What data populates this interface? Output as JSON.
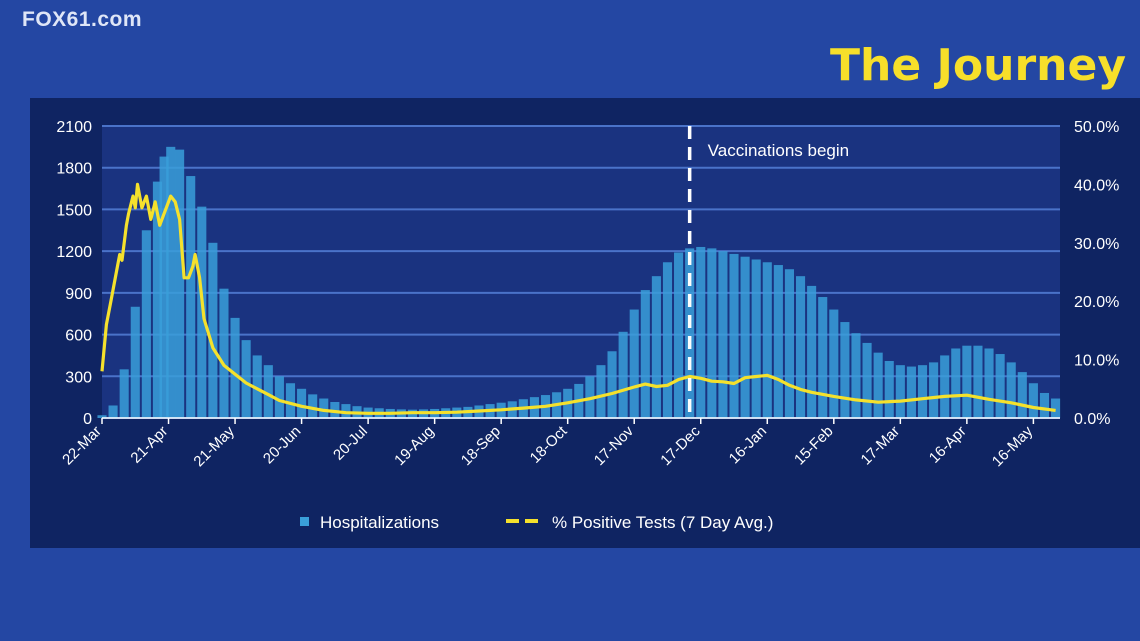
{
  "header": {
    "watermark": "FOX61.com",
    "title": "The Journey"
  },
  "colors": {
    "background": "#2447a3",
    "panel": "#0f2462",
    "plot_area": "#1a3380",
    "bars": "#3a9fd9",
    "line": "#f5e12c",
    "title": "#f7df2a"
  },
  "chart_data": {
    "type": "bar",
    "title": "",
    "x_tick_labels": [
      "22-Mar",
      "21-Apr",
      "21-May",
      "20-Jun",
      "20-Jul",
      "19-Aug",
      "18-Sep",
      "18-Oct",
      "17-Nov",
      "17-Dec",
      "16-Jan",
      "15-Feb",
      "17-Mar",
      "16-Apr",
      "16-May"
    ],
    "x_ticks_days": [
      0,
      30,
      60,
      90,
      120,
      150,
      180,
      210,
      240,
      270,
      300,
      330,
      360,
      390,
      420
    ],
    "x_range_days": [
      0,
      432
    ],
    "y_left": {
      "ticks": [
        "0",
        "300",
        "600",
        "900",
        "1200",
        "1500",
        "1800",
        "2100"
      ],
      "range": [
        0,
        2100
      ]
    },
    "y_right": {
      "ticks": [
        "0.0%",
        "10.0%",
        "20.0%",
        "30.0%",
        "40.0%",
        "50.0%"
      ],
      "range": [
        0,
        50
      ]
    },
    "grid": "horizontal",
    "legend_position": "bottom",
    "annotation": {
      "label": "Vaccinations begin",
      "x_day": 265,
      "style": "dashed vertical line"
    },
    "series": [
      {
        "name": "Hospitalizations",
        "type": "bar",
        "axis": "left",
        "points": [
          [
            0,
            20
          ],
          [
            5,
            90
          ],
          [
            10,
            350
          ],
          [
            15,
            800
          ],
          [
            20,
            1350
          ],
          [
            25,
            1700
          ],
          [
            28,
            1880
          ],
          [
            31,
            1950
          ],
          [
            35,
            1930
          ],
          [
            40,
            1740
          ],
          [
            45,
            1520
          ],
          [
            50,
            1260
          ],
          [
            55,
            930
          ],
          [
            60,
            720
          ],
          [
            65,
            560
          ],
          [
            70,
            450
          ],
          [
            75,
            380
          ],
          [
            80,
            300
          ],
          [
            85,
            250
          ],
          [
            90,
            210
          ],
          [
            95,
            170
          ],
          [
            100,
            140
          ],
          [
            105,
            115
          ],
          [
            110,
            100
          ],
          [
            115,
            85
          ],
          [
            120,
            75
          ],
          [
            125,
            70
          ],
          [
            130,
            65
          ],
          [
            135,
            62
          ],
          [
            140,
            60
          ],
          [
            145,
            62
          ],
          [
            150,
            65
          ],
          [
            155,
            70
          ],
          [
            160,
            75
          ],
          [
            165,
            80
          ],
          [
            170,
            90
          ],
          [
            175,
            100
          ],
          [
            180,
            110
          ],
          [
            185,
            120
          ],
          [
            190,
            135
          ],
          [
            195,
            150
          ],
          [
            200,
            165
          ],
          [
            205,
            185
          ],
          [
            210,
            210
          ],
          [
            215,
            245
          ],
          [
            220,
            300
          ],
          [
            225,
            380
          ],
          [
            230,
            480
          ],
          [
            235,
            620
          ],
          [
            240,
            780
          ],
          [
            245,
            920
          ],
          [
            250,
            1020
          ],
          [
            255,
            1120
          ],
          [
            260,
            1190
          ],
          [
            265,
            1220
          ],
          [
            270,
            1230
          ],
          [
            275,
            1220
          ],
          [
            280,
            1200
          ],
          [
            285,
            1180
          ],
          [
            290,
            1160
          ],
          [
            295,
            1140
          ],
          [
            300,
            1120
          ],
          [
            305,
            1100
          ],
          [
            310,
            1070
          ],
          [
            315,
            1020
          ],
          [
            320,
            950
          ],
          [
            325,
            870
          ],
          [
            330,
            780
          ],
          [
            335,
            690
          ],
          [
            340,
            610
          ],
          [
            345,
            540
          ],
          [
            350,
            470
          ],
          [
            355,
            410
          ],
          [
            360,
            380
          ],
          [
            365,
            370
          ],
          [
            370,
            380
          ],
          [
            375,
            400
          ],
          [
            380,
            450
          ],
          [
            385,
            500
          ],
          [
            390,
            520
          ],
          [
            395,
            520
          ],
          [
            400,
            500
          ],
          [
            405,
            460
          ],
          [
            410,
            400
          ],
          [
            415,
            330
          ],
          [
            420,
            250
          ],
          [
            425,
            180
          ],
          [
            430,
            140
          ]
        ]
      },
      {
        "name": "% Positive Tests (7 Day Avg.)",
        "type": "line",
        "axis": "right",
        "points": [
          [
            0,
            8
          ],
          [
            2,
            16
          ],
          [
            4,
            20
          ],
          [
            6,
            24
          ],
          [
            8,
            28
          ],
          [
            9,
            27
          ],
          [
            11,
            33
          ],
          [
            12,
            35
          ],
          [
            14,
            38
          ],
          [
            15,
            36
          ],
          [
            16,
            40
          ],
          [
            18,
            36
          ],
          [
            20,
            38
          ],
          [
            21,
            36
          ],
          [
            22,
            34
          ],
          [
            24,
            37
          ],
          [
            26,
            33
          ],
          [
            28,
            35
          ],
          [
            29,
            36
          ],
          [
            31,
            38
          ],
          [
            33,
            37
          ],
          [
            35,
            34
          ],
          [
            37,
            24
          ],
          [
            39,
            24
          ],
          [
            41,
            26
          ],
          [
            42,
            28
          ],
          [
            44,
            24
          ],
          [
            46,
            17
          ],
          [
            50,
            12
          ],
          [
            55,
            9
          ],
          [
            60,
            7.5
          ],
          [
            65,
            6
          ],
          [
            70,
            5
          ],
          [
            75,
            4
          ],
          [
            80,
            3
          ],
          [
            90,
            2
          ],
          [
            100,
            1.3
          ],
          [
            110,
            0.9
          ],
          [
            120,
            0.8
          ],
          [
            130,
            0.8
          ],
          [
            140,
            0.9
          ],
          [
            150,
            0.9
          ],
          [
            160,
            1.0
          ],
          [
            170,
            1.2
          ],
          [
            180,
            1.4
          ],
          [
            190,
            1.7
          ],
          [
            200,
            2.0
          ],
          [
            210,
            2.6
          ],
          [
            220,
            3.3
          ],
          [
            230,
            4.2
          ],
          [
            240,
            5.3
          ],
          [
            245,
            5.8
          ],
          [
            250,
            5.4
          ],
          [
            255,
            5.6
          ],
          [
            260,
            6.6
          ],
          [
            265,
            7.1
          ],
          [
            270,
            6.8
          ],
          [
            275,
            6.3
          ],
          [
            280,
            6.2
          ],
          [
            285,
            5.9
          ],
          [
            290,
            6.9
          ],
          [
            295,
            7.1
          ],
          [
            300,
            7.3
          ],
          [
            305,
            6.6
          ],
          [
            310,
            5.6
          ],
          [
            315,
            4.9
          ],
          [
            320,
            4.4
          ],
          [
            330,
            3.7
          ],
          [
            340,
            3.1
          ],
          [
            350,
            2.7
          ],
          [
            360,
            2.9
          ],
          [
            370,
            3.3
          ],
          [
            380,
            3.7
          ],
          [
            390,
            3.9
          ],
          [
            400,
            3.2
          ],
          [
            410,
            2.6
          ],
          [
            420,
            1.8
          ],
          [
            430,
            1.3
          ]
        ]
      }
    ]
  }
}
